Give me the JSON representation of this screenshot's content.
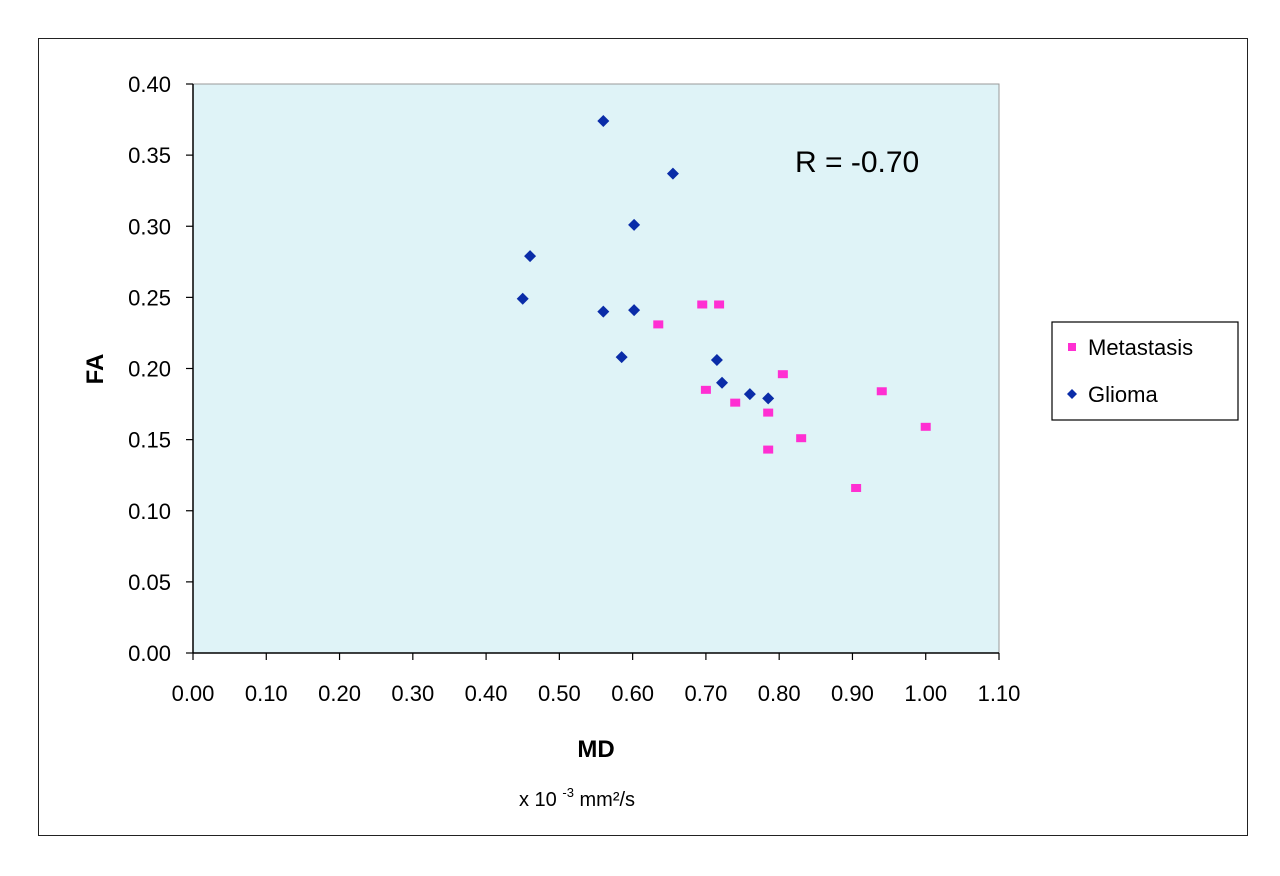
{
  "chart_data": {
    "type": "scatter",
    "xlabel": "MD",
    "x_unit": {
      "base": "x 10",
      "exp": "-3",
      "rest": " mm²/s"
    },
    "ylabel": "FA",
    "xlim": [
      0,
      1.1
    ],
    "ylim": [
      0,
      0.4
    ],
    "x_ticks": [
      "0.00",
      "0.10",
      "0.20",
      "0.30",
      "0.40",
      "0.50",
      "0.60",
      "0.70",
      "0.80",
      "0.90",
      "1.00",
      "1.10"
    ],
    "y_ticks": [
      "0.00",
      "0.05",
      "0.10",
      "0.15",
      "0.20",
      "0.25",
      "0.30",
      "0.35",
      "0.40"
    ],
    "annotation": "R = -0.70",
    "legend_position": "right",
    "grid": false,
    "plot_background": "#dff3f7",
    "series": [
      {
        "name": "Metastasis",
        "marker": "square",
        "color": "#ff2fd2",
        "points": [
          [
            0.635,
            0.231
          ],
          [
            0.695,
            0.245
          ],
          [
            0.718,
            0.245
          ],
          [
            0.7,
            0.185
          ],
          [
            0.74,
            0.176
          ],
          [
            0.785,
            0.169
          ],
          [
            0.805,
            0.196
          ],
          [
            0.785,
            0.143
          ],
          [
            0.83,
            0.151
          ],
          [
            0.905,
            0.116
          ],
          [
            0.94,
            0.184
          ],
          [
            1.0,
            0.159
          ]
        ]
      },
      {
        "name": "Glioma",
        "marker": "diamond",
        "color": "#0a2ca8",
        "points": [
          [
            0.56,
            0.374
          ],
          [
            0.655,
            0.337
          ],
          [
            0.602,
            0.301
          ],
          [
            0.46,
            0.279
          ],
          [
            0.45,
            0.249
          ],
          [
            0.56,
            0.24
          ],
          [
            0.602,
            0.241
          ],
          [
            0.585,
            0.208
          ],
          [
            0.715,
            0.206
          ],
          [
            0.722,
            0.19
          ],
          [
            0.76,
            0.182
          ],
          [
            0.785,
            0.179
          ]
        ]
      }
    ]
  }
}
